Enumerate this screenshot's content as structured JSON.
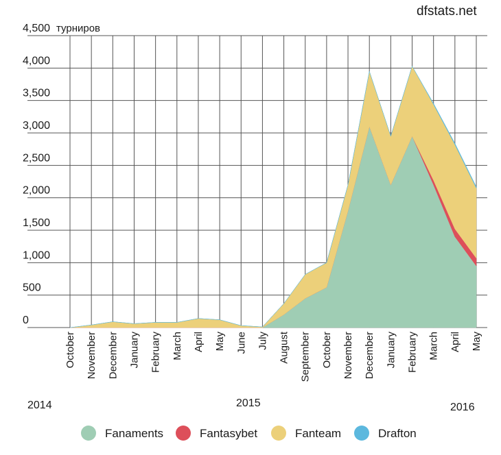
{
  "source_label": "dfstats.net",
  "chart_data": {
    "type": "area",
    "stacked": true,
    "unit_label": "турниров",
    "categories": [
      "October",
      "November",
      "December",
      "January",
      "February",
      "March",
      "April",
      "May",
      "June",
      "July",
      "August",
      "September",
      "October",
      "November",
      "December",
      "January",
      "February",
      "March",
      "April",
      "May"
    ],
    "year_labels": [
      "2014",
      "2015",
      "2016"
    ],
    "y_ticks": [
      "0",
      "500",
      "1,000",
      "1,500",
      "2,000",
      "2,500",
      "3,000",
      "3,500",
      "4,000",
      "4,500"
    ],
    "ylim": [
      0,
      4500
    ],
    "grid": true,
    "legend_position": "bottom",
    "series": [
      {
        "name": "Fanaments",
        "color": "#9fcdb4",
        "values": [
          0,
          0,
          0,
          0,
          0,
          0,
          0,
          0,
          0,
          0,
          200,
          450,
          620,
          1800,
          3100,
          2200,
          2950,
          2200,
          1400,
          950
        ]
      },
      {
        "name": "Fantasybet",
        "color": "#dd4f5a",
        "values": [
          0,
          0,
          0,
          0,
          0,
          0,
          0,
          0,
          0,
          0,
          0,
          0,
          0,
          0,
          0,
          0,
          0,
          70,
          120,
          120
        ]
      },
      {
        "name": "Fanteam",
        "color": "#ecd07a",
        "values": [
          0,
          40,
          90,
          60,
          80,
          80,
          140,
          120,
          30,
          10,
          170,
          370,
          380,
          400,
          850,
          750,
          1080,
          1170,
          1300,
          1080
        ]
      },
      {
        "name": "Drafton",
        "color": "#5cb8de",
        "values": [
          0,
          0,
          0,
          0,
          0,
          0,
          0,
          0,
          0,
          0,
          0,
          0,
          0,
          0,
          0,
          0,
          0,
          15,
          20,
          20
        ]
      }
    ]
  }
}
